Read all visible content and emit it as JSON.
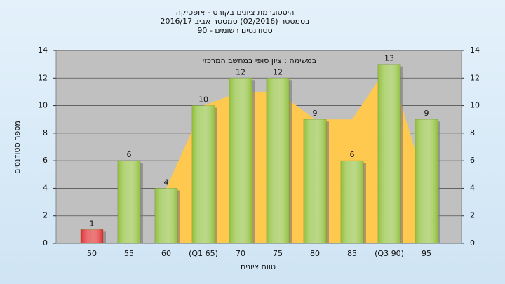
{
  "chart_data": {
    "type": "bar",
    "title": [
      "היסטוגרמת ציונים בקורס - אופטיקה",
      "בסמסטר  (02/2016)  סמסטר אביב 2016/17",
      "סטודנטים רשומים - 90"
    ],
    "annotation": "במשימה : ציון סופי במחשב המרכזי",
    "x_label": "טווח ציונים",
    "y_label": "מספר סטודנטים",
    "categories": [
      "50",
      "55",
      "60",
      "(Q1 65)",
      "70",
      "75",
      "80",
      "85",
      "(Q3 90)",
      "95"
    ],
    "values": [
      1,
      6,
      4,
      10,
      12,
      12,
      9,
      6,
      13,
      9
    ],
    "colors": [
      "#e0262a",
      "#8fbf3a",
      "#8fbf3a",
      "#8fbf3a",
      "#8fbf3a",
      "#8fbf3a",
      "#8fbf3a",
      "#8fbf3a",
      "#8fbf3a",
      "#8fbf3a"
    ],
    "area": {
      "color": "#ffc84e",
      "values": [
        null,
        null,
        4,
        10,
        11,
        11,
        9,
        9,
        13,
        4
      ]
    },
    "ylim": [
      0,
      14
    ],
    "yticks": [
      0,
      2,
      4,
      6,
      8,
      10,
      12,
      14
    ],
    "grid": true
  }
}
